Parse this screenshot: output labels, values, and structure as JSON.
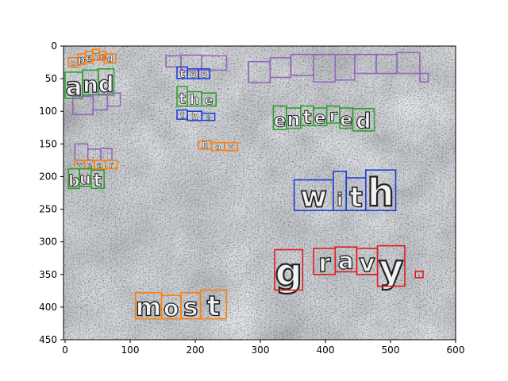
{
  "chart_data": {
    "type": "image-annotation",
    "title": "",
    "xlabel": "",
    "ylabel": "",
    "xlim": [
      0,
      600
    ],
    "ylim": [
      450,
      0
    ],
    "x_ticks": [
      0,
      100,
      200,
      300,
      400,
      500,
      600
    ],
    "y_ticks": [
      0,
      50,
      100,
      150,
      200,
      250,
      300,
      350,
      400,
      450
    ],
    "background": "textured grey stone surface",
    "words": [
      {
        "text": "opened",
        "color": "#ff7f0e",
        "chars": [
          [
            5,
            18,
            19,
            32
          ],
          [
            19,
            12,
            31,
            28
          ],
          [
            31,
            8,
            43,
            26
          ],
          [
            42,
            5,
            53,
            22
          ],
          [
            53,
            8,
            63,
            22
          ],
          [
            60,
            12,
            78,
            26
          ]
        ]
      },
      {
        "text": "and",
        "color": "#2ca02c",
        "chars": [
          [
            0,
            40,
            27,
            80
          ],
          [
            27,
            37,
            51,
            75
          ],
          [
            51,
            35,
            75,
            75
          ]
        ]
      },
      {
        "text": "",
        "color": "#9467bd",
        "chars": [
          [
            12,
            77,
            43,
            105
          ],
          [
            43,
            74,
            65,
            98
          ],
          [
            65,
            72,
            85,
            92
          ]
        ]
      },
      {
        "text": "",
        "color": "#9467bd",
        "chars": [
          [
            155,
            15,
            178,
            32
          ],
          [
            178,
            14,
            210,
            38
          ],
          [
            210,
            15,
            248,
            37
          ]
        ]
      },
      {
        "text": "too",
        "color": "#1f3fd6",
        "chars": [
          [
            172,
            32,
            188,
            50
          ],
          [
            188,
            35,
            205,
            50
          ],
          [
            205,
            35,
            222,
            50
          ]
        ]
      },
      {
        "text": "the",
        "color": "#2ca02c",
        "chars": [
          [
            172,
            62,
            188,
            92
          ],
          [
            188,
            70,
            210,
            92
          ],
          [
            210,
            72,
            232,
            92
          ]
        ]
      },
      {
        "text": "the",
        "color": "#1f3fd6",
        "chars": [
          [
            172,
            98,
            188,
            112
          ],
          [
            188,
            100,
            210,
            114
          ],
          [
            210,
            103,
            230,
            114
          ]
        ]
      },
      {
        "text": "Roy",
        "color": "#ff7f0e",
        "chars": [
          [
            205,
            145,
            225,
            158
          ],
          [
            225,
            148,
            245,
            160
          ],
          [
            245,
            148,
            265,
            160
          ]
        ]
      },
      {
        "text": "",
        "color": "#9467bd",
        "chars": [
          [
            282,
            24,
            315,
            56
          ],
          [
            315,
            18,
            347,
            48
          ],
          [
            347,
            13,
            382,
            45
          ],
          [
            382,
            13,
            415,
            55
          ],
          [
            415,
            13,
            445,
            52
          ],
          [
            445,
            13,
            478,
            42
          ],
          [
            478,
            13,
            510,
            42
          ],
          [
            510,
            10,
            545,
            42
          ],
          [
            545,
            42,
            558,
            55
          ]
        ]
      },
      {
        "text": "entered",
        "color": "#2ca02c",
        "chars": [
          [
            320,
            92,
            340,
            128
          ],
          [
            340,
            95,
            362,
            126
          ],
          [
            362,
            92,
            382,
            122
          ],
          [
            382,
            95,
            402,
            122
          ],
          [
            402,
            92,
            422,
            118
          ],
          [
            422,
            95,
            442,
            126
          ],
          [
            442,
            96,
            475,
            130
          ]
        ]
      },
      {
        "text": "",
        "color": "#9467bd",
        "chars": [
          [
            15,
            150,
            35,
            175
          ],
          [
            35,
            158,
            55,
            175
          ],
          [
            55,
            157,
            72,
            175
          ]
        ]
      },
      {
        "text": "year",
        "color": "#ff7f0e",
        "chars": [
          [
            15,
            175,
            30,
            188
          ],
          [
            30,
            175,
            45,
            188
          ],
          [
            45,
            175,
            62,
            188
          ],
          [
            62,
            175,
            80,
            188
          ]
        ]
      },
      {
        "text": "but",
        "color": "#2ca02c",
        "chars": [
          [
            5,
            188,
            22,
            218
          ],
          [
            22,
            188,
            40,
            215
          ],
          [
            40,
            190,
            60,
            218
          ]
        ]
      },
      {
        "text": "with",
        "color": "#1f3fd6",
        "chars": [
          [
            352,
            205,
            412,
            252
          ],
          [
            412,
            192,
            432,
            252
          ],
          [
            432,
            202,
            462,
            252
          ],
          [
            462,
            190,
            508,
            252
          ]
        ]
      },
      {
        "text": "gravy.",
        "color": "#e31a1c",
        "chars": [
          [
            322,
            312,
            365,
            374
          ],
          [
            382,
            310,
            415,
            350
          ],
          [
            415,
            308,
            448,
            346
          ],
          [
            448,
            310,
            480,
            350
          ],
          [
            480,
            306,
            522,
            368
          ],
          [
            538,
            345,
            550,
            355
          ]
        ]
      },
      {
        "text": "most",
        "color": "#ff7f0e",
        "chars": [
          [
            108,
            378,
            148,
            418
          ],
          [
            148,
            382,
            178,
            418
          ],
          [
            178,
            378,
            208,
            418
          ],
          [
            208,
            374,
            248,
            418
          ]
        ]
      }
    ]
  }
}
